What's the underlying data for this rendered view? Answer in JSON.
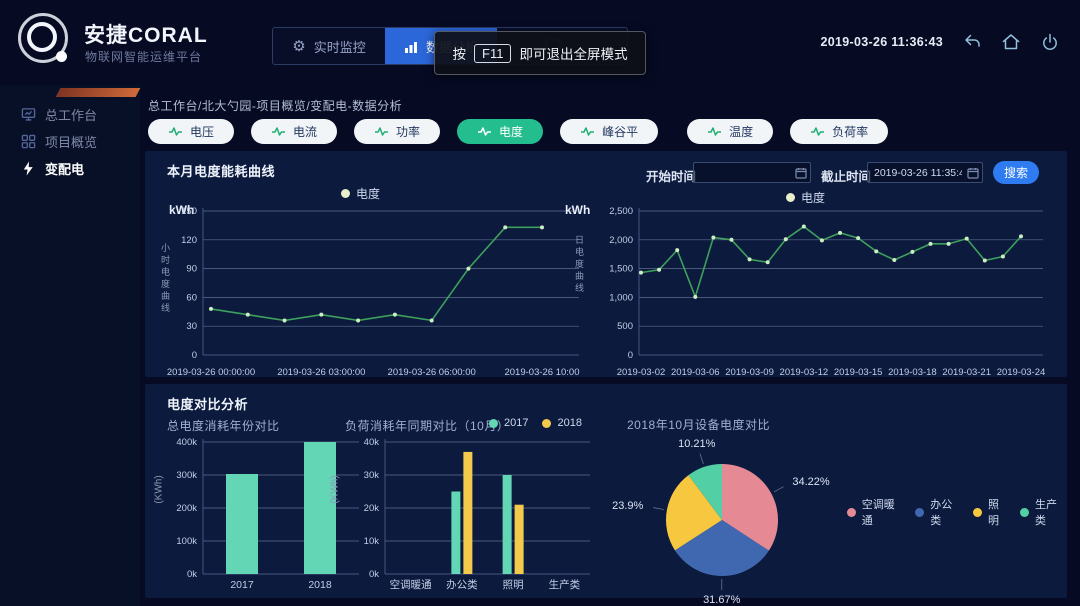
{
  "header": {
    "brand_title": "安捷CORAL",
    "brand_subtitle": "物联网智能运维平台",
    "nav_items": [
      {
        "label": "实时监控",
        "active": false
      },
      {
        "label": "数据分析",
        "active": true
      }
    ],
    "toast": {
      "prefix": "按",
      "key": "F11",
      "suffix": "即可退出全屏模式"
    },
    "datetime": "2019-03-26 11:36:43"
  },
  "sidebar": {
    "items": [
      {
        "label": "总工作台",
        "active": false
      },
      {
        "label": "项目概览",
        "active": false
      },
      {
        "label": "变配电",
        "active": true
      }
    ]
  },
  "breadcrumb": "总工作台/北大勺园-项目概览/变配电-数据分析",
  "tabs": [
    {
      "label": "电压",
      "active": false
    },
    {
      "label": "电流",
      "active": false
    },
    {
      "label": "功率",
      "active": false
    },
    {
      "label": "电度",
      "active": true
    },
    {
      "label": "峰谷平",
      "active": false
    },
    {
      "label": "温度",
      "active": false
    },
    {
      "label": "负荷率",
      "active": false
    }
  ],
  "panel1": {
    "controls": {
      "start_label": "开始时间",
      "start_value": "",
      "end_label": "截止时间",
      "end_value": "2019-03-26 11:35:47",
      "search_label": "搜索"
    }
  },
  "panel2": {
    "title": "电度对比分析"
  },
  "colors": {
    "nav_active": "#2c67d9",
    "tab_active": "#24bd8d",
    "search_blue": "#2e7bf2",
    "line_green": "#3da05c",
    "legend_dot": "#e9eecd",
    "teal": "#63d6b5",
    "yellow": "#f3ca4c"
  },
  "chart_data": [
    {
      "id": "hourly-energy-line",
      "type": "line",
      "title": "本月电度能耗曲线",
      "legend": [
        "电度"
      ],
      "unit": "kWh",
      "axis_name": "小时电度曲线",
      "values": [
        48,
        42,
        36,
        42,
        36,
        42,
        36,
        90,
        133,
        133
      ],
      "x_tick_labels": [
        "2019-03-26 00:00:00",
        "2019-03-26 03:00:00",
        "2019-03-26 06:00:00",
        "2019-03-26 10:00"
      ],
      "y_ticks": [
        0,
        30,
        60,
        90,
        120,
        150
      ],
      "ylim": [
        0,
        150
      ],
      "color": "#3da05c",
      "dot_color": "#cdeec3"
    },
    {
      "id": "daily-energy-line",
      "type": "line",
      "legend": [
        "电度"
      ],
      "unit": "kWh",
      "axis_name": "日电度曲线",
      "values": [
        1430,
        1480,
        1820,
        1010,
        2040,
        2000,
        1660,
        1610,
        2010,
        2230,
        1990,
        2120,
        2030,
        1800,
        1650,
        1790,
        1930,
        1930,
        2020,
        1640,
        1710,
        2060
      ],
      "x_tick_labels": [
        "2019-03-02",
        "2019-03-06",
        "2019-03-09",
        "2019-03-12",
        "2019-03-15",
        "2019-03-18",
        "2019-03-21",
        "2019-03-24"
      ],
      "y_ticks": [
        0,
        500,
        1000,
        1500,
        2000,
        2500
      ],
      "y_tick_commas": true,
      "ylim": [
        0,
        2500
      ],
      "color": "#3da05c",
      "dot_color": "#cdeec3"
    },
    {
      "id": "yearly-energy-bar",
      "type": "bar",
      "title": "总电度消耗年份对比",
      "ylabel": "(KWh)",
      "categories": [
        "2017",
        "2018"
      ],
      "values": [
        303000,
        400000
      ],
      "y_ticks": [
        0,
        100000,
        200000,
        300000,
        400000
      ],
      "y_tick_labels": [
        "0k",
        "100k",
        "200k",
        "300k",
        "400k"
      ],
      "color": "#63d6b5"
    },
    {
      "id": "monthly-load-grouped-bar",
      "type": "bar",
      "title": "负荷消耗年同期对比（10月）",
      "ylabel": "(KWh)",
      "categories": [
        "空调暖通",
        "办公类",
        "照明",
        "生产类"
      ],
      "series": [
        {
          "name": "2017",
          "color": "#63d6b5",
          "values": [
            0,
            25000,
            30000,
            0
          ]
        },
        {
          "name": "2018",
          "color": "#f3ca4c",
          "values": [
            0,
            37000,
            21000,
            0
          ]
        }
      ],
      "y_ticks": [
        0,
        10000,
        20000,
        30000,
        40000
      ],
      "y_tick_labels": [
        "0k",
        "10k",
        "20k",
        "30k",
        "40k"
      ]
    },
    {
      "id": "device-energy-pie",
      "type": "pie",
      "title": "2018年10月设备电度对比",
      "slices": [
        {
          "label": "空调暖通",
          "value": 34.22,
          "pct": "34.22%",
          "color": "#e58994"
        },
        {
          "label": "办公类",
          "value": 31.67,
          "pct": "31.67%",
          "color": "#4068b0"
        },
        {
          "label": "照明",
          "value": 23.9,
          "pct": "23.9%",
          "color": "#f7c73f"
        },
        {
          "label": "生产类",
          "value": 10.21,
          "pct": "10.21%",
          "color": "#52cfa5"
        }
      ]
    }
  ]
}
